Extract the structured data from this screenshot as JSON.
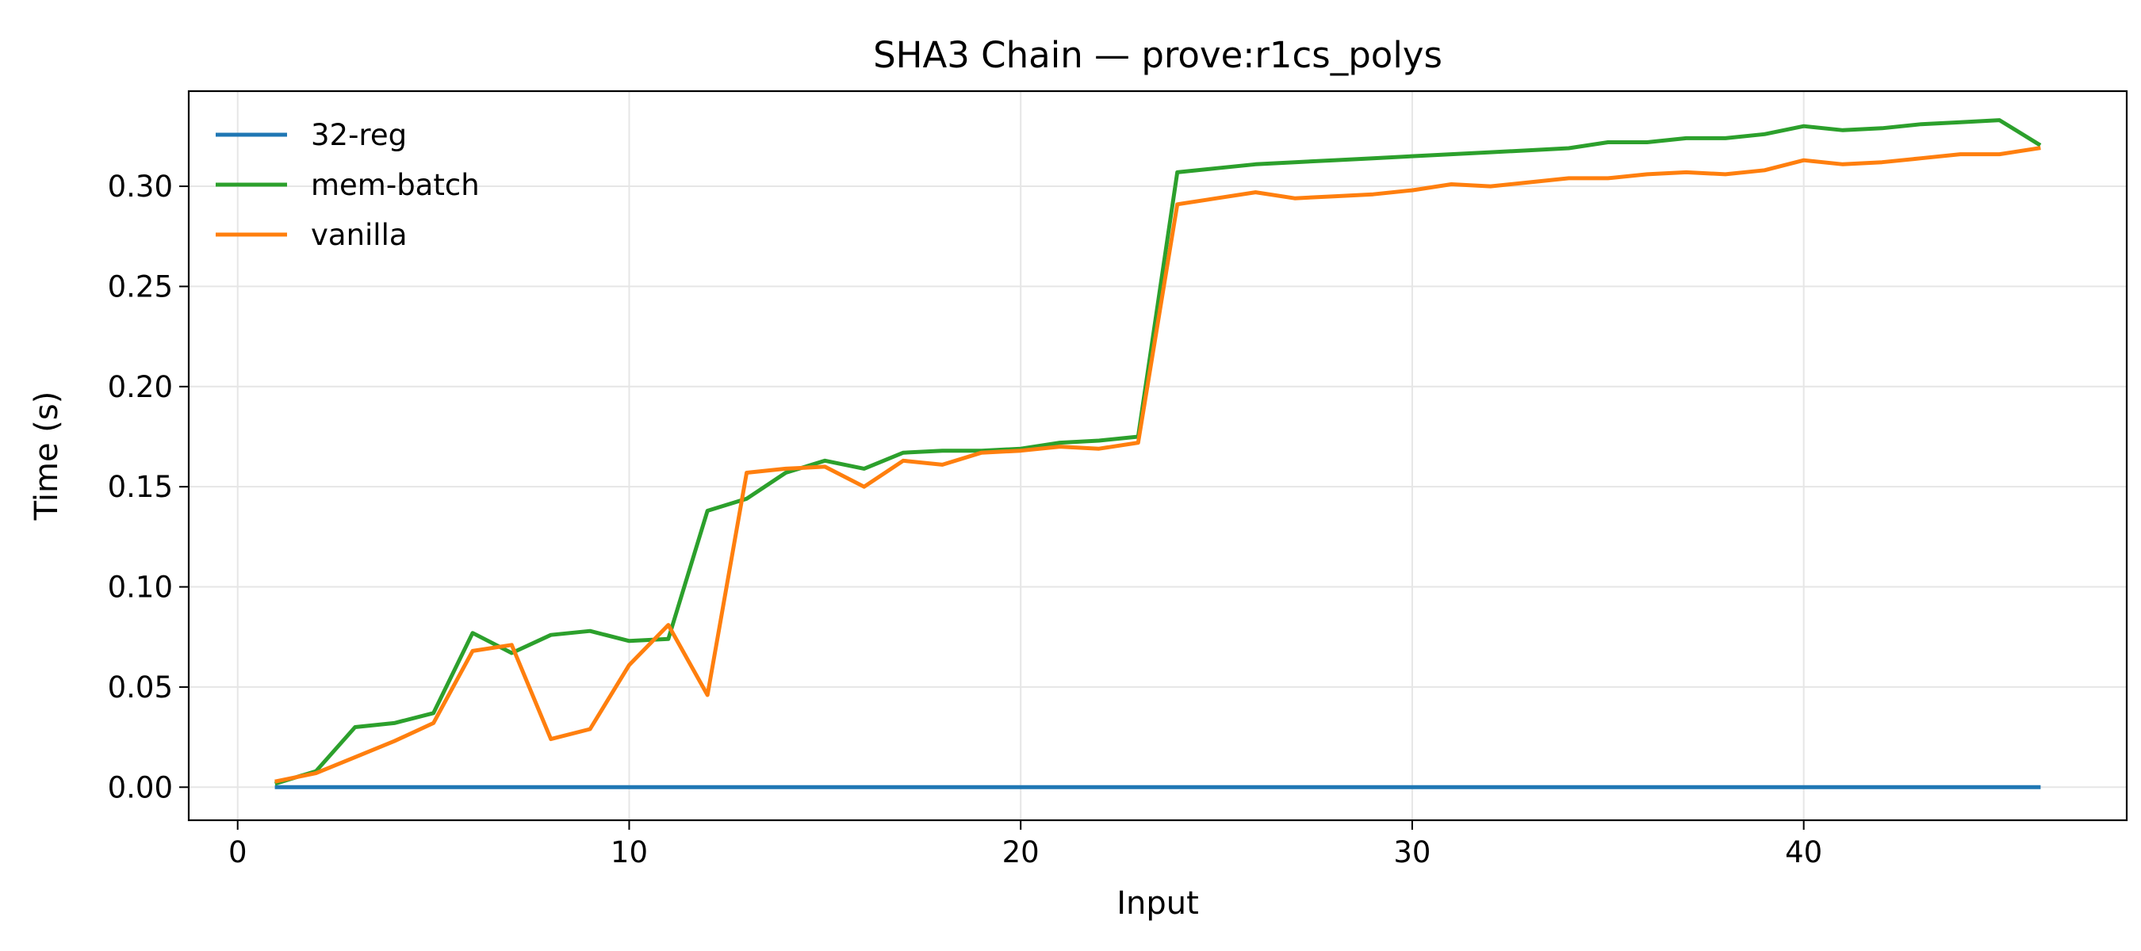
{
  "chart_data": {
    "type": "line",
    "title": "SHA3 Chain — prove:r1cs_polys",
    "xlabel": "Input",
    "ylabel": "Time (s)",
    "xlim": [
      -1.25,
      48.25
    ],
    "ylim": [
      -0.0165,
      0.3475
    ],
    "xticks": [
      0,
      10,
      20,
      30,
      40
    ],
    "xtick_labels": [
      "0",
      "10",
      "20",
      "30",
      "40"
    ],
    "yticks": [
      0.0,
      0.05,
      0.1,
      0.15,
      0.2,
      0.25,
      0.3
    ],
    "ytick_labels": [
      "0.00",
      "0.05",
      "0.10",
      "0.15",
      "0.20",
      "0.25",
      "0.30"
    ],
    "grid": true,
    "legend_position": "top-left",
    "series": [
      {
        "name": "32-reg",
        "color": "#1f77b4",
        "x": [
          1,
          2,
          3,
          4,
          5,
          6,
          7,
          8,
          9,
          10,
          11,
          12,
          13,
          14,
          15,
          16,
          17,
          18,
          19,
          20,
          21,
          22,
          23,
          24,
          25,
          26,
          27,
          28,
          29,
          30,
          31,
          32,
          33,
          34,
          35,
          36,
          37,
          38,
          39,
          40,
          41,
          42,
          43,
          44,
          45,
          46
        ],
        "y": [
          0,
          0,
          0,
          0,
          0,
          0,
          0,
          0,
          0,
          0,
          0,
          0,
          0,
          0,
          0,
          0,
          0,
          0,
          0,
          0,
          0,
          0,
          0,
          0,
          0,
          0,
          0,
          0,
          0,
          0,
          0,
          0,
          0,
          0,
          0,
          0,
          0,
          0,
          0,
          0,
          0,
          0,
          0,
          0,
          0,
          0
        ]
      },
      {
        "name": "mem-batch",
        "color": "#2ca02c",
        "x": [
          1,
          2,
          3,
          4,
          5,
          6,
          7,
          8,
          9,
          10,
          11,
          12,
          13,
          14,
          15,
          16,
          17,
          18,
          19,
          20,
          21,
          22,
          23,
          24,
          25,
          26,
          27,
          28,
          29,
          30,
          31,
          32,
          33,
          34,
          35,
          36,
          37,
          38,
          39,
          40,
          41,
          42,
          43,
          44,
          45,
          46
        ],
        "y": [
          0.002,
          0.008,
          0.03,
          0.032,
          0.037,
          0.077,
          0.067,
          0.076,
          0.078,
          0.073,
          0.074,
          0.138,
          0.144,
          0.157,
          0.163,
          0.159,
          0.167,
          0.168,
          0.168,
          0.169,
          0.172,
          0.173,
          0.175,
          0.307,
          0.309,
          0.311,
          0.312,
          0.313,
          0.314,
          0.315,
          0.316,
          0.317,
          0.318,
          0.319,
          0.322,
          0.322,
          0.324,
          0.324,
          0.326,
          0.33,
          0.328,
          0.329,
          0.331,
          0.332,
          0.333,
          0.321
        ]
      },
      {
        "name": "vanilla",
        "color": "#ff7f0e",
        "x": [
          1,
          2,
          3,
          4,
          5,
          6,
          7,
          8,
          9,
          10,
          11,
          12,
          13,
          14,
          15,
          16,
          17,
          18,
          19,
          20,
          21,
          22,
          23,
          24,
          25,
          26,
          27,
          28,
          29,
          30,
          31,
          32,
          33,
          34,
          35,
          36,
          37,
          38,
          39,
          40,
          41,
          42,
          43,
          44,
          45,
          46
        ],
        "y": [
          0.003,
          0.007,
          0.015,
          0.023,
          0.032,
          0.068,
          0.071,
          0.024,
          0.029,
          0.061,
          0.081,
          0.046,
          0.157,
          0.159,
          0.16,
          0.15,
          0.163,
          0.161,
          0.167,
          0.168,
          0.17,
          0.169,
          0.172,
          0.291,
          0.294,
          0.297,
          0.294,
          0.295,
          0.296,
          0.298,
          0.301,
          0.3,
          0.302,
          0.304,
          0.304,
          0.306,
          0.307,
          0.306,
          0.308,
          0.313,
          0.311,
          0.312,
          0.314,
          0.316,
          0.316,
          0.319
        ]
      }
    ]
  }
}
